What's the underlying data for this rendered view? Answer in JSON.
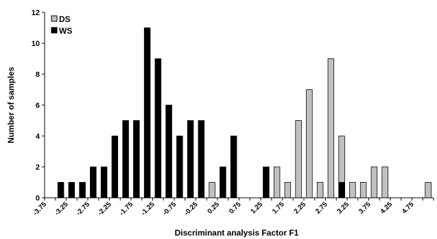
{
  "chart_data": {
    "type": "bar",
    "title": "",
    "xlabel": "Discriminant analysis Factor F1",
    "ylabel": "Number of samples",
    "ylim": [
      0,
      12
    ],
    "yticks": [
      "0",
      "2",
      "4",
      "6",
      "8",
      "10",
      "12"
    ],
    "xlim": [
      -3.75,
      5.25
    ],
    "xticks": [
      "-3.75",
      "-3.25",
      "-2.75",
      "-2.25",
      "-1.75",
      "-1.25",
      "-0.75",
      "-0.25",
      "0.25",
      "0.75",
      "1.25",
      "1.75",
      "2.25",
      "2.75",
      "3.25",
      "3.75",
      "4.25",
      "4.75"
    ],
    "bin_width": 0.25,
    "grid": false,
    "legend": "top-left",
    "series": [
      {
        "name": "DS",
        "color": "#c0c0c0",
        "points": [
          {
            "x": 0.125,
            "y": 1
          },
          {
            "x": 1.625,
            "y": 2
          },
          {
            "x": 1.875,
            "y": 1
          },
          {
            "x": 2.125,
            "y": 5
          },
          {
            "x": 2.375,
            "y": 7
          },
          {
            "x": 2.625,
            "y": 1
          },
          {
            "x": 2.875,
            "y": 9
          },
          {
            "x": 3.125,
            "y": 4
          },
          {
            "x": 3.375,
            "y": 1
          },
          {
            "x": 3.625,
            "y": 1
          },
          {
            "x": 3.875,
            "y": 2
          },
          {
            "x": 4.125,
            "y": 2
          },
          {
            "x": 5.125,
            "y": 1
          }
        ]
      },
      {
        "name": "WS",
        "color": "#000000",
        "points": [
          {
            "x": -3.375,
            "y": 1
          },
          {
            "x": -3.125,
            "y": 1
          },
          {
            "x": -2.875,
            "y": 1
          },
          {
            "x": -2.625,
            "y": 2
          },
          {
            "x": -2.375,
            "y": 2
          },
          {
            "x": -2.125,
            "y": 4
          },
          {
            "x": -1.875,
            "y": 5
          },
          {
            "x": -1.625,
            "y": 5
          },
          {
            "x": -1.375,
            "y": 11
          },
          {
            "x": -1.125,
            "y": 9
          },
          {
            "x": -0.875,
            "y": 6
          },
          {
            "x": -0.625,
            "y": 4
          },
          {
            "x": -0.375,
            "y": 5
          },
          {
            "x": -0.125,
            "y": 5
          },
          {
            "x": 0.375,
            "y": 2
          },
          {
            "x": 0.625,
            "y": 4
          },
          {
            "x": 1.375,
            "y": 2
          },
          {
            "x": 3.125,
            "y": 1
          }
        ]
      }
    ]
  }
}
